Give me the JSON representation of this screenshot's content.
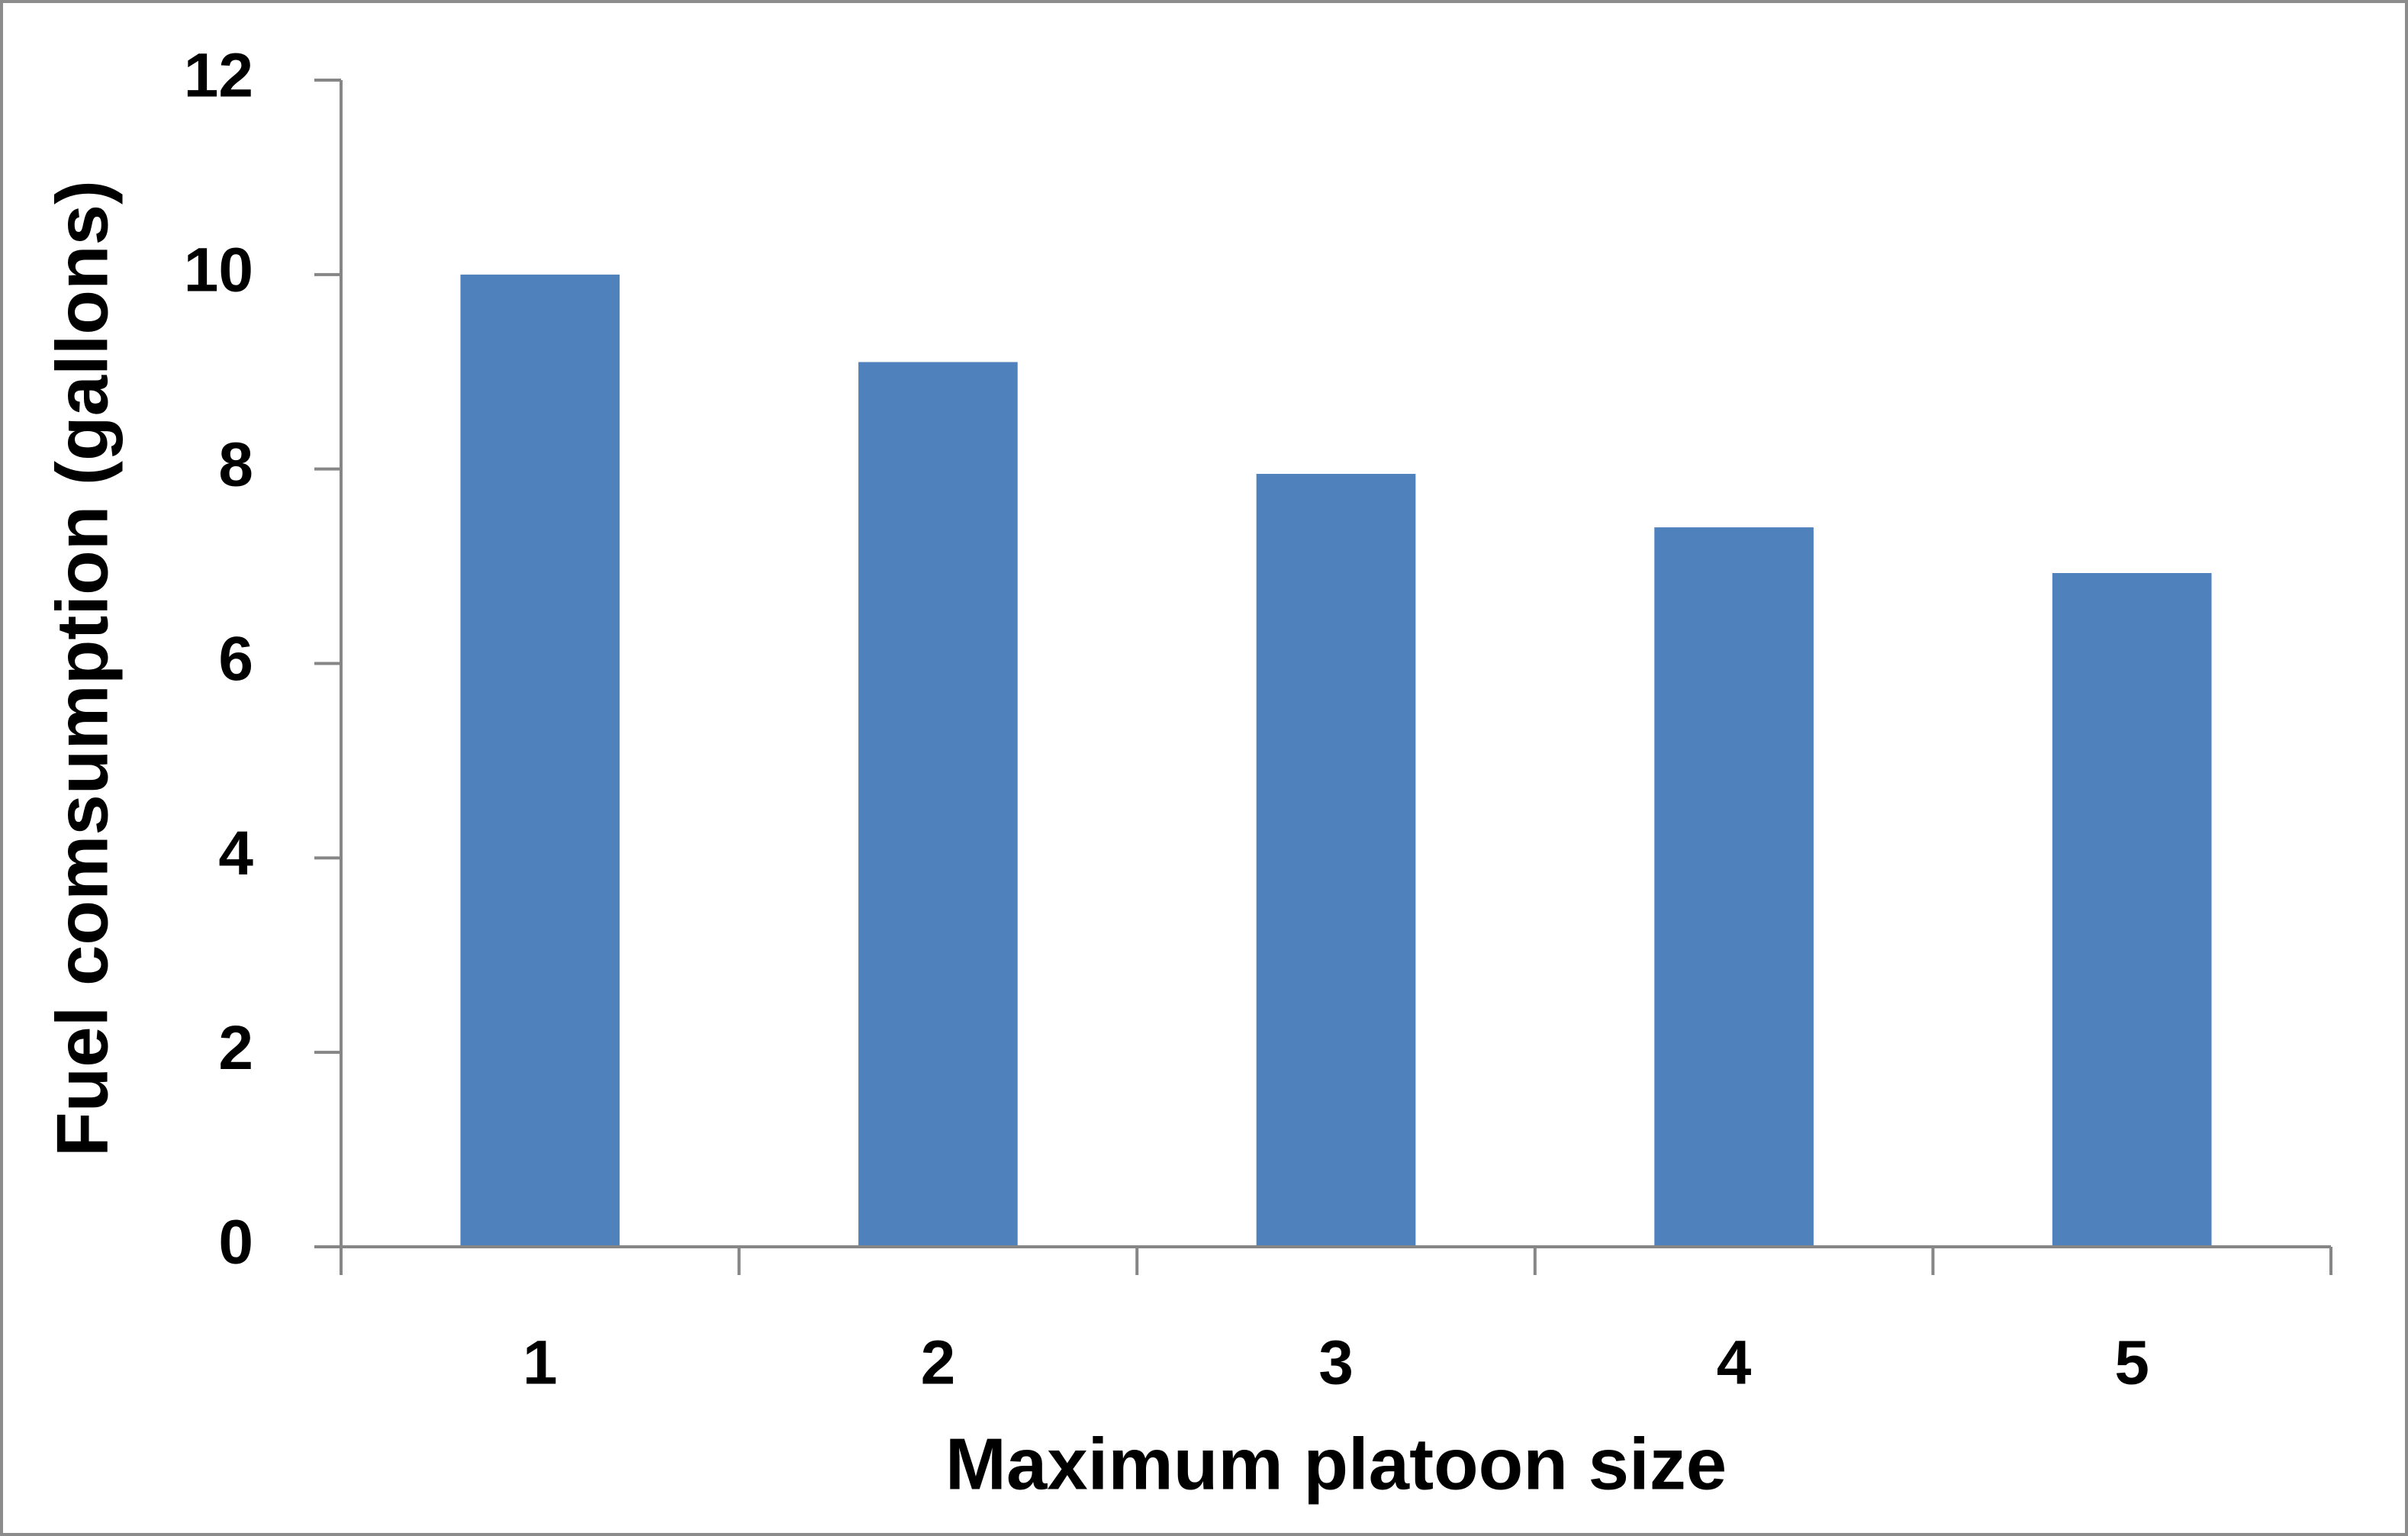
{
  "chart_data": {
    "type": "bar",
    "x_label": "Maximum platoon size",
    "y_label": "Fuel comsumption (gallons)",
    "categories": [
      "1",
      "2",
      "3",
      "4",
      "5"
    ],
    "values": [
      10.0,
      9.1,
      7.95,
      7.4,
      6.93
    ],
    "color": "#4f81bd",
    "ylim": [
      0,
      12
    ],
    "yticks": [
      0,
      2,
      4,
      6,
      8,
      10,
      12
    ],
    "grid": false
  }
}
